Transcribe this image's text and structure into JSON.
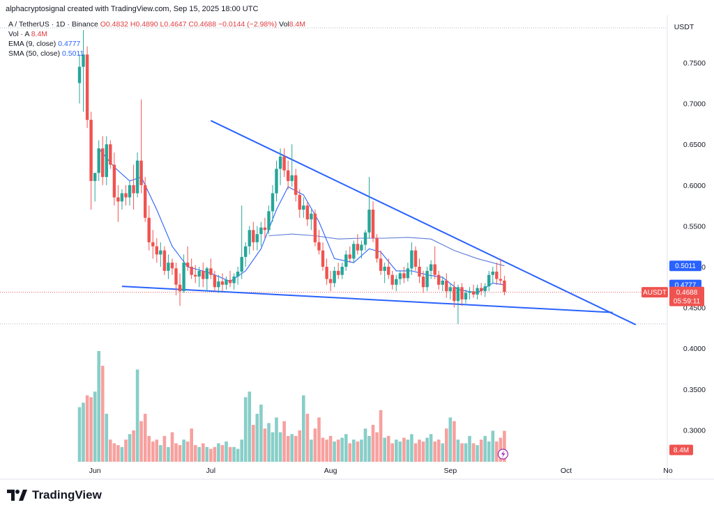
{
  "header": {
    "text": "alphacryptosignal created with TradingView.com, Sep 15, 2025 18:00 UTC"
  },
  "legend": {
    "symbol": "A / TetherUS · 1D · Binance",
    "ohlc": "O0.4832 H0.4890 L0.4647 C0.4688 −0.0144 (−2.98%)",
    "vol_label": "Vol",
    "vol_value": "8.4M",
    "vol_line_label": "Vol · A",
    "vol_line_value": "8.4M",
    "ema_label": "EMA (9, close)",
    "ema_value": "0.4777",
    "sma_label": "SMA (50, close)",
    "sma_value": "0.5011"
  },
  "right_axis": {
    "currency": "USDT",
    "ema_badge": "0.4777",
    "sma_badge": "0.5011",
    "ticker_badge": "AUSDT",
    "price_badge": "0.4688",
    "countdown": "05:59:11",
    "volume_badge": "8.4M"
  },
  "colors": {
    "up": "#26a69a",
    "down": "#ef5350",
    "ema": "#2962ff",
    "sma": "#5b7bd6",
    "trendline": "#2962ff"
  },
  "footer": {
    "brand": "TradingView"
  },
  "chart_data": {
    "type": "candlestick",
    "title": "",
    "y_axis": {
      "position": "right",
      "unit": "USDT",
      "ticks": [
        0.75,
        0.7,
        0.65,
        0.6,
        0.55,
        0.5,
        0.45,
        0.4,
        0.35,
        0.3
      ],
      "tick_labels": [
        "0.7500",
        "0.7000",
        "0.6500",
        "0.6000",
        "0.5500",
        "0.5000",
        "0.4500",
        "0.4000",
        "0.3500",
        "0.3000"
      ],
      "range": [
        0.265,
        0.795
      ]
    },
    "x_axis": {
      "labels": [
        "Jun",
        "Jul",
        "Aug",
        "Sep",
        "Oct",
        "No"
      ],
      "label_dates": [
        "2025-06-01",
        "2025-07-01",
        "2025-08-01",
        "2025-09-01",
        "2025-10-01",
        "2025-11-01"
      ],
      "start_date": "2025-05-28",
      "end_date": "2025-11-01"
    },
    "grid": false,
    "candles": [
      {
        "d": "2025-05-28",
        "o": 0.725,
        "h": 0.76,
        "l": 0.7,
        "c": 0.745
      },
      {
        "d": "2025-05-29",
        "o": 0.745,
        "h": 0.79,
        "l": 0.69,
        "c": 0.76
      },
      {
        "d": "2025-05-30",
        "o": 0.76,
        "h": 0.77,
        "l": 0.67,
        "c": 0.68
      },
      {
        "d": "2025-05-31",
        "o": 0.68,
        "h": 0.69,
        "l": 0.57,
        "c": 0.605
      },
      {
        "d": "2025-06-01",
        "o": 0.605,
        "h": 0.61,
        "l": 0.58,
        "c": 0.615
      },
      {
        "d": "2025-06-02",
        "o": 0.615,
        "h": 0.655,
        "l": 0.605,
        "c": 0.645
      },
      {
        "d": "2025-06-03",
        "o": 0.645,
        "h": 0.66,
        "l": 0.6,
        "c": 0.61
      },
      {
        "d": "2025-06-04",
        "o": 0.61,
        "h": 0.66,
        "l": 0.6,
        "c": 0.65
      },
      {
        "d": "2025-06-05",
        "o": 0.65,
        "h": 0.655,
        "l": 0.62,
        "c": 0.625
      },
      {
        "d": "2025-06-06",
        "o": 0.625,
        "h": 0.64,
        "l": 0.575,
        "c": 0.585
      },
      {
        "d": "2025-06-07",
        "o": 0.585,
        "h": 0.6,
        "l": 0.555,
        "c": 0.58
      },
      {
        "d": "2025-06-08",
        "o": 0.58,
        "h": 0.595,
        "l": 0.57,
        "c": 0.59
      },
      {
        "d": "2025-06-09",
        "o": 0.59,
        "h": 0.6,
        "l": 0.575,
        "c": 0.585
      },
      {
        "d": "2025-06-10",
        "o": 0.585,
        "h": 0.605,
        "l": 0.575,
        "c": 0.6
      },
      {
        "d": "2025-06-11",
        "o": 0.6,
        "h": 0.625,
        "l": 0.57,
        "c": 0.59
      },
      {
        "d": "2025-06-12",
        "o": 0.59,
        "h": 0.64,
        "l": 0.585,
        "c": 0.63
      },
      {
        "d": "2025-06-13",
        "o": 0.63,
        "h": 0.705,
        "l": 0.59,
        "c": 0.6
      },
      {
        "d": "2025-06-14",
        "o": 0.6,
        "h": 0.61,
        "l": 0.555,
        "c": 0.56
      },
      {
        "d": "2025-06-15",
        "o": 0.56,
        "h": 0.575,
        "l": 0.52,
        "c": 0.53
      },
      {
        "d": "2025-06-16",
        "o": 0.53,
        "h": 0.545,
        "l": 0.51,
        "c": 0.525
      },
      {
        "d": "2025-06-17",
        "o": 0.525,
        "h": 0.535,
        "l": 0.505,
        "c": 0.515
      },
      {
        "d": "2025-06-18",
        "o": 0.515,
        "h": 0.53,
        "l": 0.5,
        "c": 0.52
      },
      {
        "d": "2025-06-19",
        "o": 0.52,
        "h": 0.525,
        "l": 0.49,
        "c": 0.495
      },
      {
        "d": "2025-06-20",
        "o": 0.495,
        "h": 0.515,
        "l": 0.485,
        "c": 0.505
      },
      {
        "d": "2025-06-21",
        "o": 0.505,
        "h": 0.51,
        "l": 0.49,
        "c": 0.498
      },
      {
        "d": "2025-06-22",
        "o": 0.498,
        "h": 0.505,
        "l": 0.465,
        "c": 0.478
      },
      {
        "d": "2025-06-23",
        "o": 0.478,
        "h": 0.492,
        "l": 0.452,
        "c": 0.47
      },
      {
        "d": "2025-06-24",
        "o": 0.47,
        "h": 0.515,
        "l": 0.468,
        "c": 0.505
      },
      {
        "d": "2025-06-25",
        "o": 0.505,
        "h": 0.525,
        "l": 0.495,
        "c": 0.5
      },
      {
        "d": "2025-06-26",
        "o": 0.5,
        "h": 0.51,
        "l": 0.485,
        "c": 0.49
      },
      {
        "d": "2025-06-27",
        "o": 0.49,
        "h": 0.502,
        "l": 0.48,
        "c": 0.488
      },
      {
        "d": "2025-06-28",
        "o": 0.488,
        "h": 0.5,
        "l": 0.475,
        "c": 0.495
      },
      {
        "d": "2025-06-29",
        "o": 0.495,
        "h": 0.505,
        "l": 0.475,
        "c": 0.485
      },
      {
        "d": "2025-06-30",
        "o": 0.485,
        "h": 0.5,
        "l": 0.47,
        "c": 0.498
      },
      {
        "d": "2025-07-01",
        "o": 0.498,
        "h": 0.51,
        "l": 0.485,
        "c": 0.49
      },
      {
        "d": "2025-07-02",
        "o": 0.49,
        "h": 0.495,
        "l": 0.47,
        "c": 0.475
      },
      {
        "d": "2025-07-03",
        "o": 0.475,
        "h": 0.49,
        "l": 0.468,
        "c": 0.482
      },
      {
        "d": "2025-07-04",
        "o": 0.482,
        "h": 0.492,
        "l": 0.47,
        "c": 0.478
      },
      {
        "d": "2025-07-05",
        "o": 0.478,
        "h": 0.488,
        "l": 0.472,
        "c": 0.484
      },
      {
        "d": "2025-07-06",
        "o": 0.484,
        "h": 0.495,
        "l": 0.475,
        "c": 0.48
      },
      {
        "d": "2025-07-07",
        "o": 0.48,
        "h": 0.492,
        "l": 0.472,
        "c": 0.488
      },
      {
        "d": "2025-07-08",
        "o": 0.488,
        "h": 0.5,
        "l": 0.478,
        "c": 0.494
      },
      {
        "d": "2025-07-09",
        "o": 0.494,
        "h": 0.575,
        "l": 0.485,
        "c": 0.512
      },
      {
        "d": "2025-07-10",
        "o": 0.512,
        "h": 0.53,
        "l": 0.5,
        "c": 0.525
      },
      {
        "d": "2025-07-11",
        "o": 0.525,
        "h": 0.55,
        "l": 0.515,
        "c": 0.545
      },
      {
        "d": "2025-07-12",
        "o": 0.545,
        "h": 0.555,
        "l": 0.52,
        "c": 0.53
      },
      {
        "d": "2025-07-13",
        "o": 0.53,
        "h": 0.55,
        "l": 0.52,
        "c": 0.54
      },
      {
        "d": "2025-07-14",
        "o": 0.54,
        "h": 0.555,
        "l": 0.525,
        "c": 0.548
      },
      {
        "d": "2025-07-15",
        "o": 0.548,
        "h": 0.56,
        "l": 0.535,
        "c": 0.545
      },
      {
        "d": "2025-07-16",
        "o": 0.545,
        "h": 0.575,
        "l": 0.54,
        "c": 0.568
      },
      {
        "d": "2025-07-17",
        "o": 0.568,
        "h": 0.6,
        "l": 0.555,
        "c": 0.59
      },
      {
        "d": "2025-07-18",
        "o": 0.59,
        "h": 0.63,
        "l": 0.58,
        "c": 0.62
      },
      {
        "d": "2025-07-19",
        "o": 0.62,
        "h": 0.645,
        "l": 0.6,
        "c": 0.635
      },
      {
        "d": "2025-07-20",
        "o": 0.635,
        "h": 0.645,
        "l": 0.61,
        "c": 0.618
      },
      {
        "d": "2025-07-21",
        "o": 0.618,
        "h": 0.63,
        "l": 0.595,
        "c": 0.605
      },
      {
        "d": "2025-07-22",
        "o": 0.605,
        "h": 0.65,
        "l": 0.598,
        "c": 0.612
      },
      {
        "d": "2025-07-23",
        "o": 0.612,
        "h": 0.62,
        "l": 0.58,
        "c": 0.588
      },
      {
        "d": "2025-07-24",
        "o": 0.588,
        "h": 0.595,
        "l": 0.56,
        "c": 0.57
      },
      {
        "d": "2025-07-25",
        "o": 0.57,
        "h": 0.585,
        "l": 0.56,
        "c": 0.575
      },
      {
        "d": "2025-07-26",
        "o": 0.575,
        "h": 0.58,
        "l": 0.55,
        "c": 0.558
      },
      {
        "d": "2025-07-27",
        "o": 0.558,
        "h": 0.57,
        "l": 0.545,
        "c": 0.565
      },
      {
        "d": "2025-07-28",
        "o": 0.565,
        "h": 0.57,
        "l": 0.525,
        "c": 0.53
      },
      {
        "d": "2025-07-29",
        "o": 0.53,
        "h": 0.545,
        "l": 0.515,
        "c": 0.52
      },
      {
        "d": "2025-07-30",
        "o": 0.52,
        "h": 0.53,
        "l": 0.495,
        "c": 0.5
      },
      {
        "d": "2025-07-31",
        "o": 0.5,
        "h": 0.51,
        "l": 0.478,
        "c": 0.485
      },
      {
        "d": "2025-08-01",
        "o": 0.485,
        "h": 0.495,
        "l": 0.47,
        "c": 0.48
      },
      {
        "d": "2025-08-02",
        "o": 0.48,
        "h": 0.5,
        "l": 0.475,
        "c": 0.495
      },
      {
        "d": "2025-08-03",
        "o": 0.495,
        "h": 0.505,
        "l": 0.485,
        "c": 0.49
      },
      {
        "d": "2025-08-04",
        "o": 0.49,
        "h": 0.505,
        "l": 0.485,
        "c": 0.5
      },
      {
        "d": "2025-08-05",
        "o": 0.5,
        "h": 0.52,
        "l": 0.495,
        "c": 0.515
      },
      {
        "d": "2025-08-06",
        "o": 0.515,
        "h": 0.525,
        "l": 0.505,
        "c": 0.51
      },
      {
        "d": "2025-08-07",
        "o": 0.51,
        "h": 0.532,
        "l": 0.505,
        "c": 0.528
      },
      {
        "d": "2025-08-08",
        "o": 0.528,
        "h": 0.54,
        "l": 0.515,
        "c": 0.52
      },
      {
        "d": "2025-08-09",
        "o": 0.52,
        "h": 0.532,
        "l": 0.51,
        "c": 0.527
      },
      {
        "d": "2025-08-10",
        "o": 0.527,
        "h": 0.545,
        "l": 0.52,
        "c": 0.542
      },
      {
        "d": "2025-08-11",
        "o": 0.542,
        "h": 0.61,
        "l": 0.535,
        "c": 0.57
      },
      {
        "d": "2025-08-12",
        "o": 0.57,
        "h": 0.58,
        "l": 0.53,
        "c": 0.535
      },
      {
        "d": "2025-08-13",
        "o": 0.535,
        "h": 0.54,
        "l": 0.505,
        "c": 0.51
      },
      {
        "d": "2025-08-14",
        "o": 0.51,
        "h": 0.52,
        "l": 0.49,
        "c": 0.495
      },
      {
        "d": "2025-08-15",
        "o": 0.495,
        "h": 0.505,
        "l": 0.48,
        "c": 0.5
      },
      {
        "d": "2025-08-16",
        "o": 0.5,
        "h": 0.51,
        "l": 0.485,
        "c": 0.49
      },
      {
        "d": "2025-08-17",
        "o": 0.49,
        "h": 0.495,
        "l": 0.472,
        "c": 0.478
      },
      {
        "d": "2025-08-18",
        "o": 0.478,
        "h": 0.49,
        "l": 0.47,
        "c": 0.485
      },
      {
        "d": "2025-08-19",
        "o": 0.485,
        "h": 0.495,
        "l": 0.478,
        "c": 0.492
      },
      {
        "d": "2025-08-20",
        "o": 0.492,
        "h": 0.5,
        "l": 0.48,
        "c": 0.486
      },
      {
        "d": "2025-08-21",
        "o": 0.486,
        "h": 0.505,
        "l": 0.482,
        "c": 0.498
      },
      {
        "d": "2025-08-22",
        "o": 0.498,
        "h": 0.53,
        "l": 0.49,
        "c": 0.52
      },
      {
        "d": "2025-08-23",
        "o": 0.52,
        "h": 0.525,
        "l": 0.495,
        "c": 0.5
      },
      {
        "d": "2025-08-24",
        "o": 0.5,
        "h": 0.51,
        "l": 0.48,
        "c": 0.488
      },
      {
        "d": "2025-08-25",
        "o": 0.488,
        "h": 0.495,
        "l": 0.468,
        "c": 0.475
      },
      {
        "d": "2025-08-26",
        "o": 0.475,
        "h": 0.5,
        "l": 0.47,
        "c": 0.495
      },
      {
        "d": "2025-08-27",
        "o": 0.495,
        "h": 0.508,
        "l": 0.485,
        "c": 0.503
      },
      {
        "d": "2025-08-28",
        "o": 0.503,
        "h": 0.525,
        "l": 0.485,
        "c": 0.49
      },
      {
        "d": "2025-08-29",
        "o": 0.49,
        "h": 0.495,
        "l": 0.472,
        "c": 0.478
      },
      {
        "d": "2025-08-30",
        "o": 0.478,
        "h": 0.488,
        "l": 0.47,
        "c": 0.483
      },
      {
        "d": "2025-08-31",
        "o": 0.483,
        "h": 0.492,
        "l": 0.462,
        "c": 0.47
      },
      {
        "d": "2025-09-01",
        "o": 0.47,
        "h": 0.48,
        "l": 0.46,
        "c": 0.475
      },
      {
        "d": "2025-09-02",
        "o": 0.475,
        "h": 0.482,
        "l": 0.45,
        "c": 0.458
      },
      {
        "d": "2025-09-03",
        "o": 0.458,
        "h": 0.478,
        "l": 0.43,
        "c": 0.475
      },
      {
        "d": "2025-09-04",
        "o": 0.475,
        "h": 0.48,
        "l": 0.452,
        "c": 0.46
      },
      {
        "d": "2025-09-05",
        "o": 0.46,
        "h": 0.472,
        "l": 0.455,
        "c": 0.468
      },
      {
        "d": "2025-09-06",
        "o": 0.468,
        "h": 0.475,
        "l": 0.46,
        "c": 0.47
      },
      {
        "d": "2025-09-07",
        "o": 0.47,
        "h": 0.478,
        "l": 0.462,
        "c": 0.466
      },
      {
        "d": "2025-09-08",
        "o": 0.466,
        "h": 0.478,
        "l": 0.46,
        "c": 0.474
      },
      {
        "d": "2025-09-09",
        "o": 0.474,
        "h": 0.48,
        "l": 0.465,
        "c": 0.47
      },
      {
        "d": "2025-09-10",
        "o": 0.47,
        "h": 0.48,
        "l": 0.463,
        "c": 0.476
      },
      {
        "d": "2025-09-11",
        "o": 0.476,
        "h": 0.495,
        "l": 0.47,
        "c": 0.49
      },
      {
        "d": "2025-09-12",
        "o": 0.49,
        "h": 0.5,
        "l": 0.48,
        "c": 0.494
      },
      {
        "d": "2025-09-13",
        "o": 0.494,
        "h": 0.505,
        "l": 0.478,
        "c": 0.485
      },
      {
        "d": "2025-09-14",
        "o": 0.485,
        "h": 0.51,
        "l": 0.478,
        "c": 0.483
      },
      {
        "d": "2025-09-15",
        "o": 0.483,
        "h": 0.489,
        "l": 0.465,
        "c": 0.469
      }
    ],
    "volume": {
      "unit": "M",
      "last_value": 8.4,
      "bars": [
        14.8,
        16.0,
        18.0,
        17.5,
        19.0,
        30.0,
        26.0,
        13.0,
        6.0,
        5.0,
        4.5,
        4.0,
        6.0,
        7.5,
        8.5,
        25.0,
        11.0,
        13.0,
        7.0,
        5.5,
        6.0,
        4.5,
        7.0,
        4.0,
        8.0,
        5.0,
        4.5,
        6.0,
        5.5,
        9.0,
        4.5,
        4.0,
        5.0,
        4.0,
        3.5,
        4.0,
        5.0,
        4.5,
        5.5,
        4.0,
        4.0,
        3.5,
        6.0,
        17.5,
        19.0,
        10.0,
        13.0,
        15.5,
        9.0,
        10.5,
        8.0,
        12.0,
        8.0,
        11.0,
        7.0,
        7.5,
        7.0,
        8.5,
        18.0,
        13.0,
        6.0,
        9.0,
        12.0,
        6.5,
        6.0,
        7.0,
        5.5,
        6.0,
        6.5,
        7.5,
        5.0,
        6.0,
        5.5,
        6.0,
        9.0,
        7.0,
        10.0,
        8.0,
        14.0,
        6.5,
        7.0,
        5.0,
        6.0,
        5.5,
        6.5,
        6.0,
        7.5,
        5.0,
        6.0,
        5.5,
        6.5,
        7.5,
        5.5,
        6.0,
        5.0,
        9.0,
        12.0,
        11.0,
        6.0,
        5.0,
        5.0,
        7.0,
        5.0,
        4.5,
        6.0,
        7.0,
        5.5,
        8.4,
        5.5,
        6.5,
        8.4
      ]
    },
    "ema": {
      "name": "EMA (9, close)",
      "points": [
        [
          "2025-06-02",
          0.645
        ],
        [
          "2025-06-06",
          0.622
        ],
        [
          "2025-06-10",
          0.605
        ],
        [
          "2025-06-13",
          0.61
        ],
        [
          "2025-06-17",
          0.57
        ],
        [
          "2025-06-21",
          0.525
        ],
        [
          "2025-06-25",
          0.5
        ],
        [
          "2025-07-01",
          0.492
        ],
        [
          "2025-07-06",
          0.482
        ],
        [
          "2025-07-10",
          0.495
        ],
        [
          "2025-07-14",
          0.522
        ],
        [
          "2025-07-18",
          0.57
        ],
        [
          "2025-07-21",
          0.598
        ],
        [
          "2025-07-25",
          0.588
        ],
        [
          "2025-07-29",
          0.555
        ],
        [
          "2025-08-02",
          0.51
        ],
        [
          "2025-08-07",
          0.505
        ],
        [
          "2025-08-11",
          0.522
        ],
        [
          "2025-08-14",
          0.518
        ],
        [
          "2025-08-18",
          0.495
        ],
        [
          "2025-08-22",
          0.495
        ],
        [
          "2025-08-26",
          0.49
        ],
        [
          "2025-08-30",
          0.487
        ],
        [
          "2025-09-03",
          0.472
        ],
        [
          "2025-09-08",
          0.468
        ],
        [
          "2025-09-12",
          0.48
        ],
        [
          "2025-09-15",
          0.4777
        ]
      ]
    },
    "sma": {
      "name": "SMA (50, close)",
      "points": [
        [
          "2025-07-16",
          0.538
        ],
        [
          "2025-07-22",
          0.54
        ],
        [
          "2025-07-28",
          0.538
        ],
        [
          "2025-08-03",
          0.534
        ],
        [
          "2025-08-09",
          0.535
        ],
        [
          "2025-08-15",
          0.535
        ],
        [
          "2025-08-21",
          0.536
        ],
        [
          "2025-08-27",
          0.534
        ],
        [
          "2025-09-02",
          0.52
        ],
        [
          "2025-09-08",
          0.51
        ],
        [
          "2025-09-15",
          0.5011
        ]
      ]
    },
    "trendlines": [
      {
        "x1": "2025-07-01",
        "y1": 0.679,
        "x2": "2025-10-19",
        "y2": 0.429
      },
      {
        "x1": "2025-06-08",
        "y1": 0.476,
        "x2": "2025-10-13",
        "y2": 0.444
      }
    ],
    "price_line": 0.4688
  }
}
